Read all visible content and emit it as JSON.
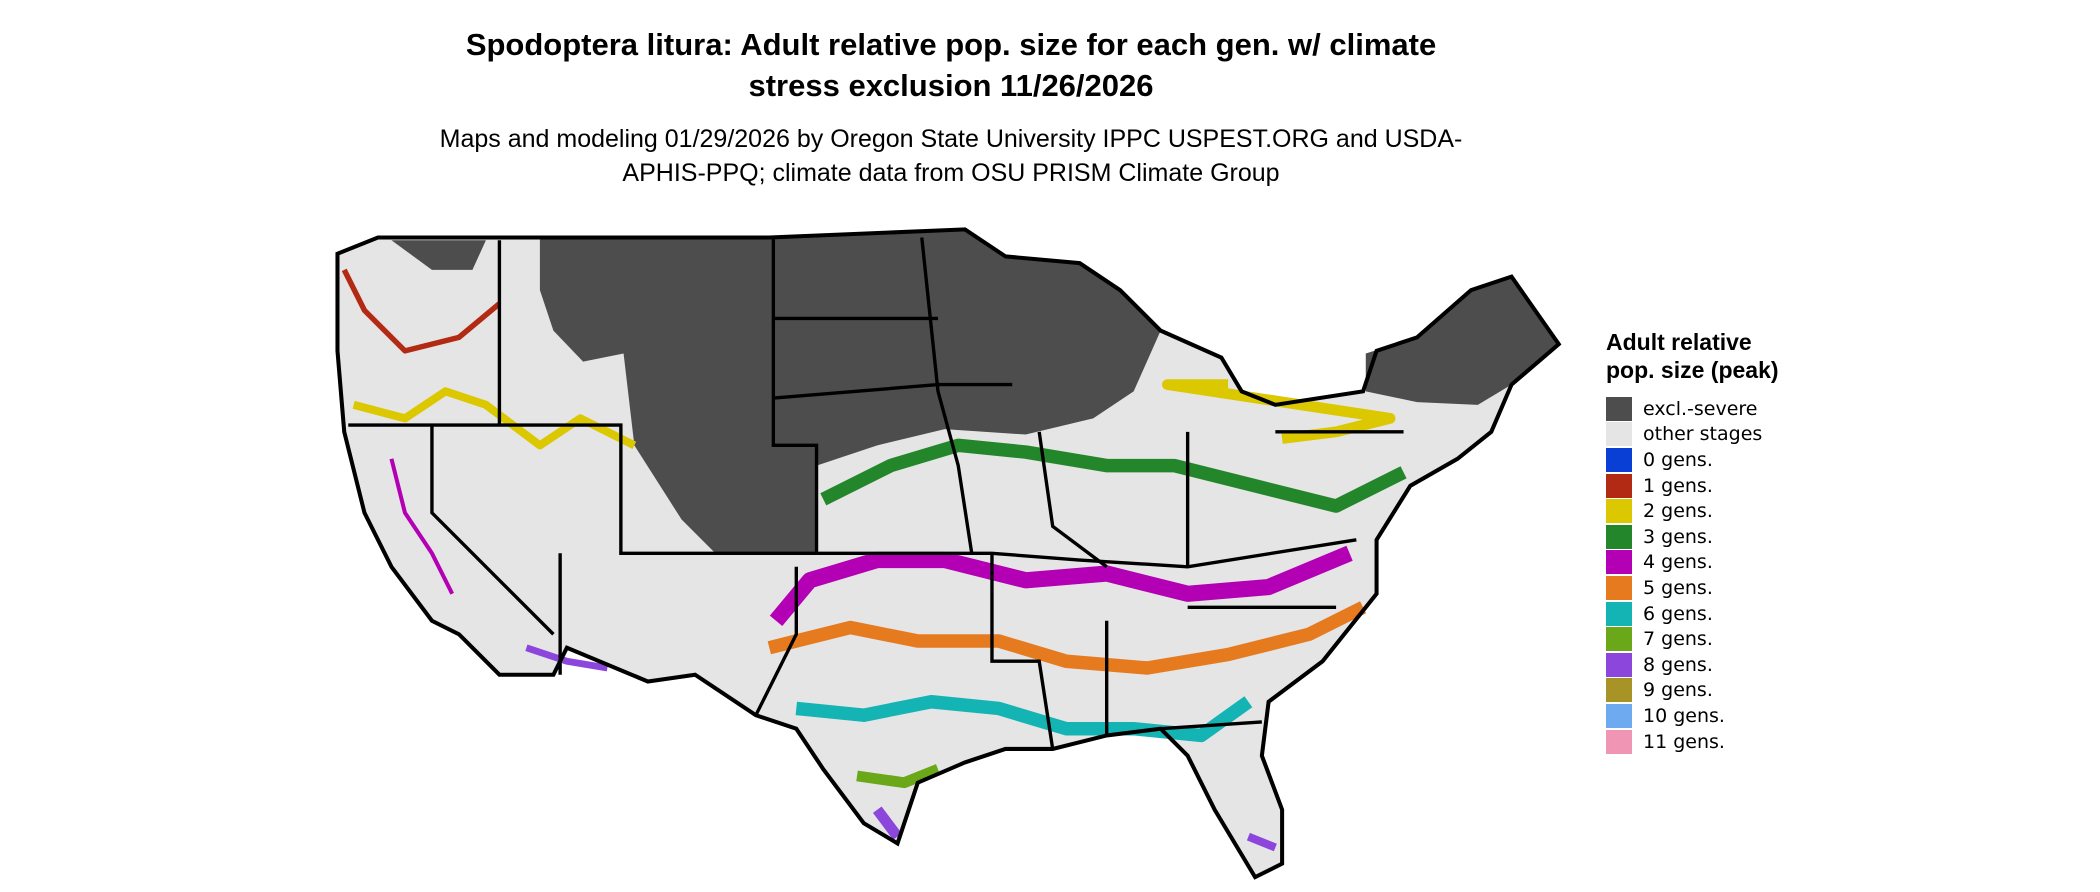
{
  "header": {
    "title": "Spodoptera litura: Adult relative pop. size for each gen. w/ climate stress exclusion 11/26/2026",
    "subtitle": "Maps and modeling 01/29/2026 by Oregon State University IPPC USPEST.ORG and USDA-APHIS-PPQ; climate data from OSU PRISM Climate Group"
  },
  "legend": {
    "title": "Adult relative pop. size (peak)",
    "items": [
      {
        "label": "excl.-severe",
        "color": "#4d4d4d"
      },
      {
        "label": "other stages",
        "color": "#e5e5e5"
      },
      {
        "label": "0 gens.",
        "color": "#0a3fd6"
      },
      {
        "label": "1 gens.",
        "color": "#b22a14"
      },
      {
        "label": "2 gens.",
        "color": "#dcc800"
      },
      {
        "label": "3 gens.",
        "color": "#23862a"
      },
      {
        "label": "4 gens.",
        "color": "#b400b4"
      },
      {
        "label": "5 gens.",
        "color": "#e67a1e"
      },
      {
        "label": "6 gens.",
        "color": "#14b4b4"
      },
      {
        "label": "7 gens.",
        "color": "#6aa81a"
      },
      {
        "label": "8 gens.",
        "color": "#8c46dc"
      },
      {
        "label": "9 gens.",
        "color": "#a89426"
      },
      {
        "label": "10 gens.",
        "color": "#6eaaf0"
      },
      {
        "label": "11 gens.",
        "color": "#f096b4"
      }
    ]
  }
}
